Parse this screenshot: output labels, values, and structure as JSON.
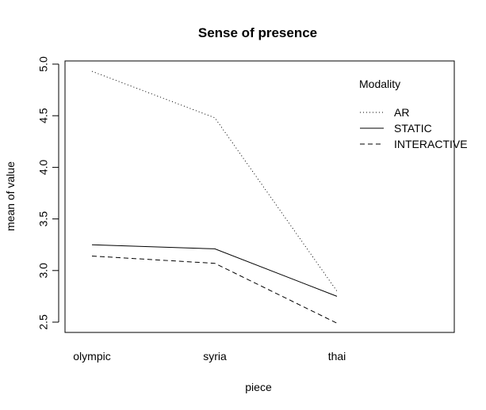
{
  "chart_data": {
    "type": "line",
    "title": "Sense of presence",
    "xlabel": "piece",
    "ylabel": "mean of  value",
    "categories": [
      "olympic",
      "syria",
      "thai"
    ],
    "ylim": [
      2.5,
      5.0
    ],
    "yticks": [
      "2.5",
      "3.0",
      "3.5",
      "4.0",
      "4.5",
      "5.0"
    ],
    "grid": false,
    "legend": {
      "title": "Modality",
      "placement": "top-right"
    },
    "series": [
      {
        "name": "AR",
        "values": [
          4.93,
          4.48,
          2.8
        ],
        "linestyle": "dotted"
      },
      {
        "name": "STATIC",
        "values": [
          3.25,
          3.21,
          2.75
        ],
        "linestyle": "solid"
      },
      {
        "name": "INTERACTIVE",
        "values": [
          3.14,
          3.07,
          2.49
        ],
        "linestyle": "dashed"
      }
    ]
  }
}
